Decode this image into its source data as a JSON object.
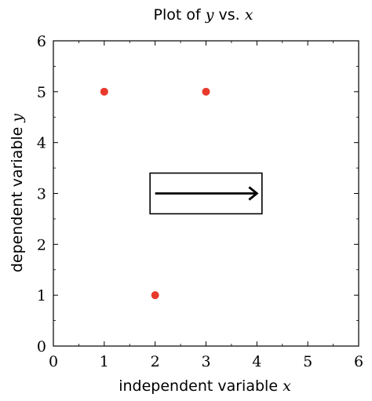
{
  "chart_data": {
    "type": "scatter",
    "title": {
      "prefix": "Plot of ",
      "var_y": "y",
      "middle": " vs. ",
      "var_x": "x"
    },
    "xlabel": {
      "text": "independent variable ",
      "var": "x"
    },
    "ylabel": {
      "text": "dependent variable ",
      "var": "y"
    },
    "xlim": [
      0,
      6
    ],
    "ylim": [
      0,
      6
    ],
    "xticks": [
      0,
      1,
      2,
      3,
      4,
      5,
      6
    ],
    "yticks": [
      0,
      1,
      2,
      3,
      4,
      5,
      6
    ],
    "xtick_labels": [
      "0",
      "1",
      "2",
      "3",
      "4",
      "5",
      "6"
    ],
    "ytick_labels": [
      "0",
      "1",
      "2",
      "3",
      "4",
      "5",
      "6"
    ],
    "grid": false,
    "series": [
      {
        "x": [
          1,
          3,
          2
        ],
        "y": [
          5,
          5,
          1
        ],
        "color": "#e8392b"
      }
    ],
    "annotation": {
      "box": {
        "x0": 1.9,
        "x1": 4.1,
        "y0": 2.6,
        "y1": 3.4
      },
      "arrow": {
        "x0": 2.0,
        "x1": 4.0,
        "y": 3.0
      }
    }
  }
}
